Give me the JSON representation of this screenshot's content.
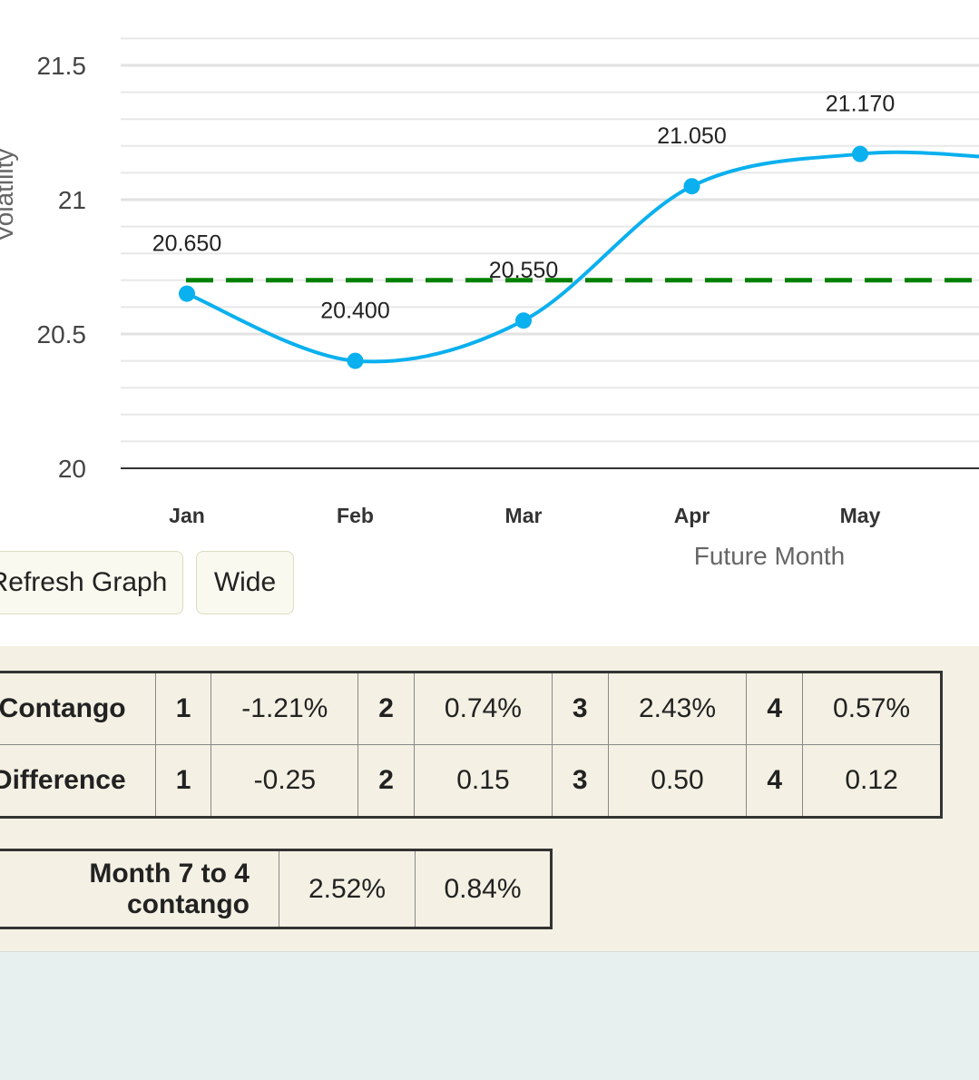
{
  "chart_data": {
    "type": "line",
    "categories": [
      "Jan",
      "Feb",
      "Mar",
      "Apr",
      "May"
    ],
    "values": [
      20.65,
      20.4,
      20.55,
      21.05,
      21.17
    ],
    "data_labels": [
      "20.650",
      "20.400",
      "20.550",
      "21.050",
      "21.170"
    ],
    "yticks": [
      "20",
      "20.5",
      "21",
      "21.5"
    ],
    "ylim": [
      20,
      21.67
    ],
    "ylabel": "Volatility",
    "xlabel": "Future Month",
    "reference_line": 20.7,
    "line_color": "#0bb0ee",
    "reference_color": "#008000",
    "grid": true
  },
  "buttons": {
    "refresh": "Refresh Graph",
    "wide": "Wide"
  },
  "table": {
    "rows": [
      {
        "label": "Contango",
        "cells": [
          [
            "1",
            "-1.21%"
          ],
          [
            "2",
            "0.74%"
          ],
          [
            "3",
            "2.43%"
          ],
          [
            "4",
            "0.57%"
          ]
        ]
      },
      {
        "label": "Difference",
        "cells": [
          [
            "1",
            "-0.25"
          ],
          [
            "2",
            "0.15"
          ],
          [
            "3",
            "0.50"
          ],
          [
            "4",
            "0.12"
          ]
        ]
      }
    ]
  },
  "summary": {
    "label": "Month 7 to 4 contango",
    "values": [
      "2.52%",
      "0.84%"
    ]
  }
}
